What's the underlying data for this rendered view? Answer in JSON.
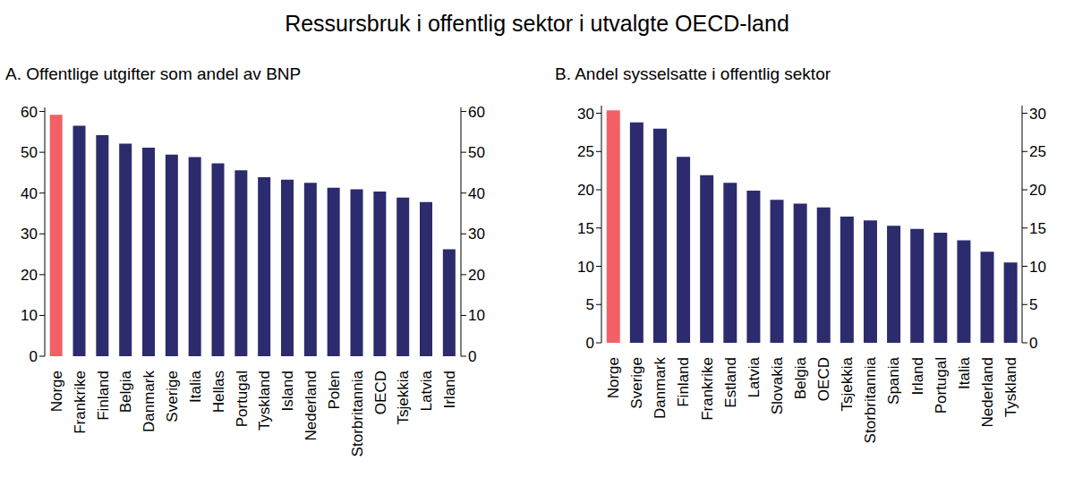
{
  "title": "Ressursbruk i offentlig sektor i utvalgte OECD-land",
  "chart_data": [
    {
      "type": "bar",
      "title": "A.  Offentlige utgifter som andel av BNP",
      "categories": [
        "Norge",
        "Frankrike",
        "Finland",
        "Belgia",
        "Danmark",
        "Sverige",
        "Italia",
        "Hellas",
        "Portugal",
        "Tyskland",
        "Island",
        "Nederland",
        "Polen",
        "Storbritannia",
        "OECD",
        "Tsjekkia",
        "Latvia",
        "Irland"
      ],
      "values": [
        59.2,
        56.5,
        54.2,
        52.1,
        51.1,
        49.4,
        48.8,
        47.3,
        45.6,
        43.9,
        43.3,
        42.5,
        41.3,
        40.9,
        40.4,
        38.9,
        37.8,
        26.2
      ],
      "colors": [
        "#f26065",
        "#2b2b6e",
        "#2b2b6e",
        "#2b2b6e",
        "#2b2b6e",
        "#2b2b6e",
        "#2b2b6e",
        "#2b2b6e",
        "#2b2b6e",
        "#2b2b6e",
        "#2b2b6e",
        "#2b2b6e",
        "#2b2b6e",
        "#2b2b6e",
        "#2b2b6e",
        "#2b2b6e",
        "#2b2b6e",
        "#2b2b6e"
      ],
      "ylim": [
        0,
        61
      ],
      "yticks": [
        0,
        10,
        20,
        30,
        40,
        50,
        60
      ],
      "y2lim": [
        0,
        61
      ],
      "y2ticks": [
        0,
        10,
        20,
        30,
        40,
        50,
        60
      ],
      "grid": false
    },
    {
      "type": "bar",
      "title": "B.  Andel sysselsatte i offentlig sektor",
      "categories": [
        "Norge",
        "Sverige",
        "Danmark",
        "Finland",
        "Frankrike",
        "Estland",
        "Latvia",
        "Slovakia",
        "Belgia",
        "OECD",
        "Tsjekkia",
        "Storbritannia",
        "Spania",
        "Irland",
        "Portugal",
        "Italia",
        "Nederland",
        "Tyskland"
      ],
      "values": [
        30.4,
        28.8,
        28.0,
        24.3,
        21.9,
        20.9,
        19.9,
        18.7,
        18.2,
        17.7,
        16.5,
        16.0,
        15.3,
        14.9,
        14.4,
        13.4,
        11.9,
        10.5
      ],
      "colors": [
        "#f26065",
        "#2b2b6e",
        "#2b2b6e",
        "#2b2b6e",
        "#2b2b6e",
        "#2b2b6e",
        "#2b2b6e",
        "#2b2b6e",
        "#2b2b6e",
        "#2b2b6e",
        "#2b2b6e",
        "#2b2b6e",
        "#2b2b6e",
        "#2b2b6e",
        "#2b2b6e",
        "#2b2b6e",
        "#2b2b6e",
        "#2b2b6e"
      ],
      "ylim": [
        0,
        31
      ],
      "yticks": [
        0,
        5,
        10,
        15,
        20,
        25,
        30
      ],
      "y2lim": [
        0,
        31
      ],
      "y2ticks": [
        0,
        5,
        10,
        15,
        20,
        25,
        30
      ],
      "grid": false
    }
  ]
}
